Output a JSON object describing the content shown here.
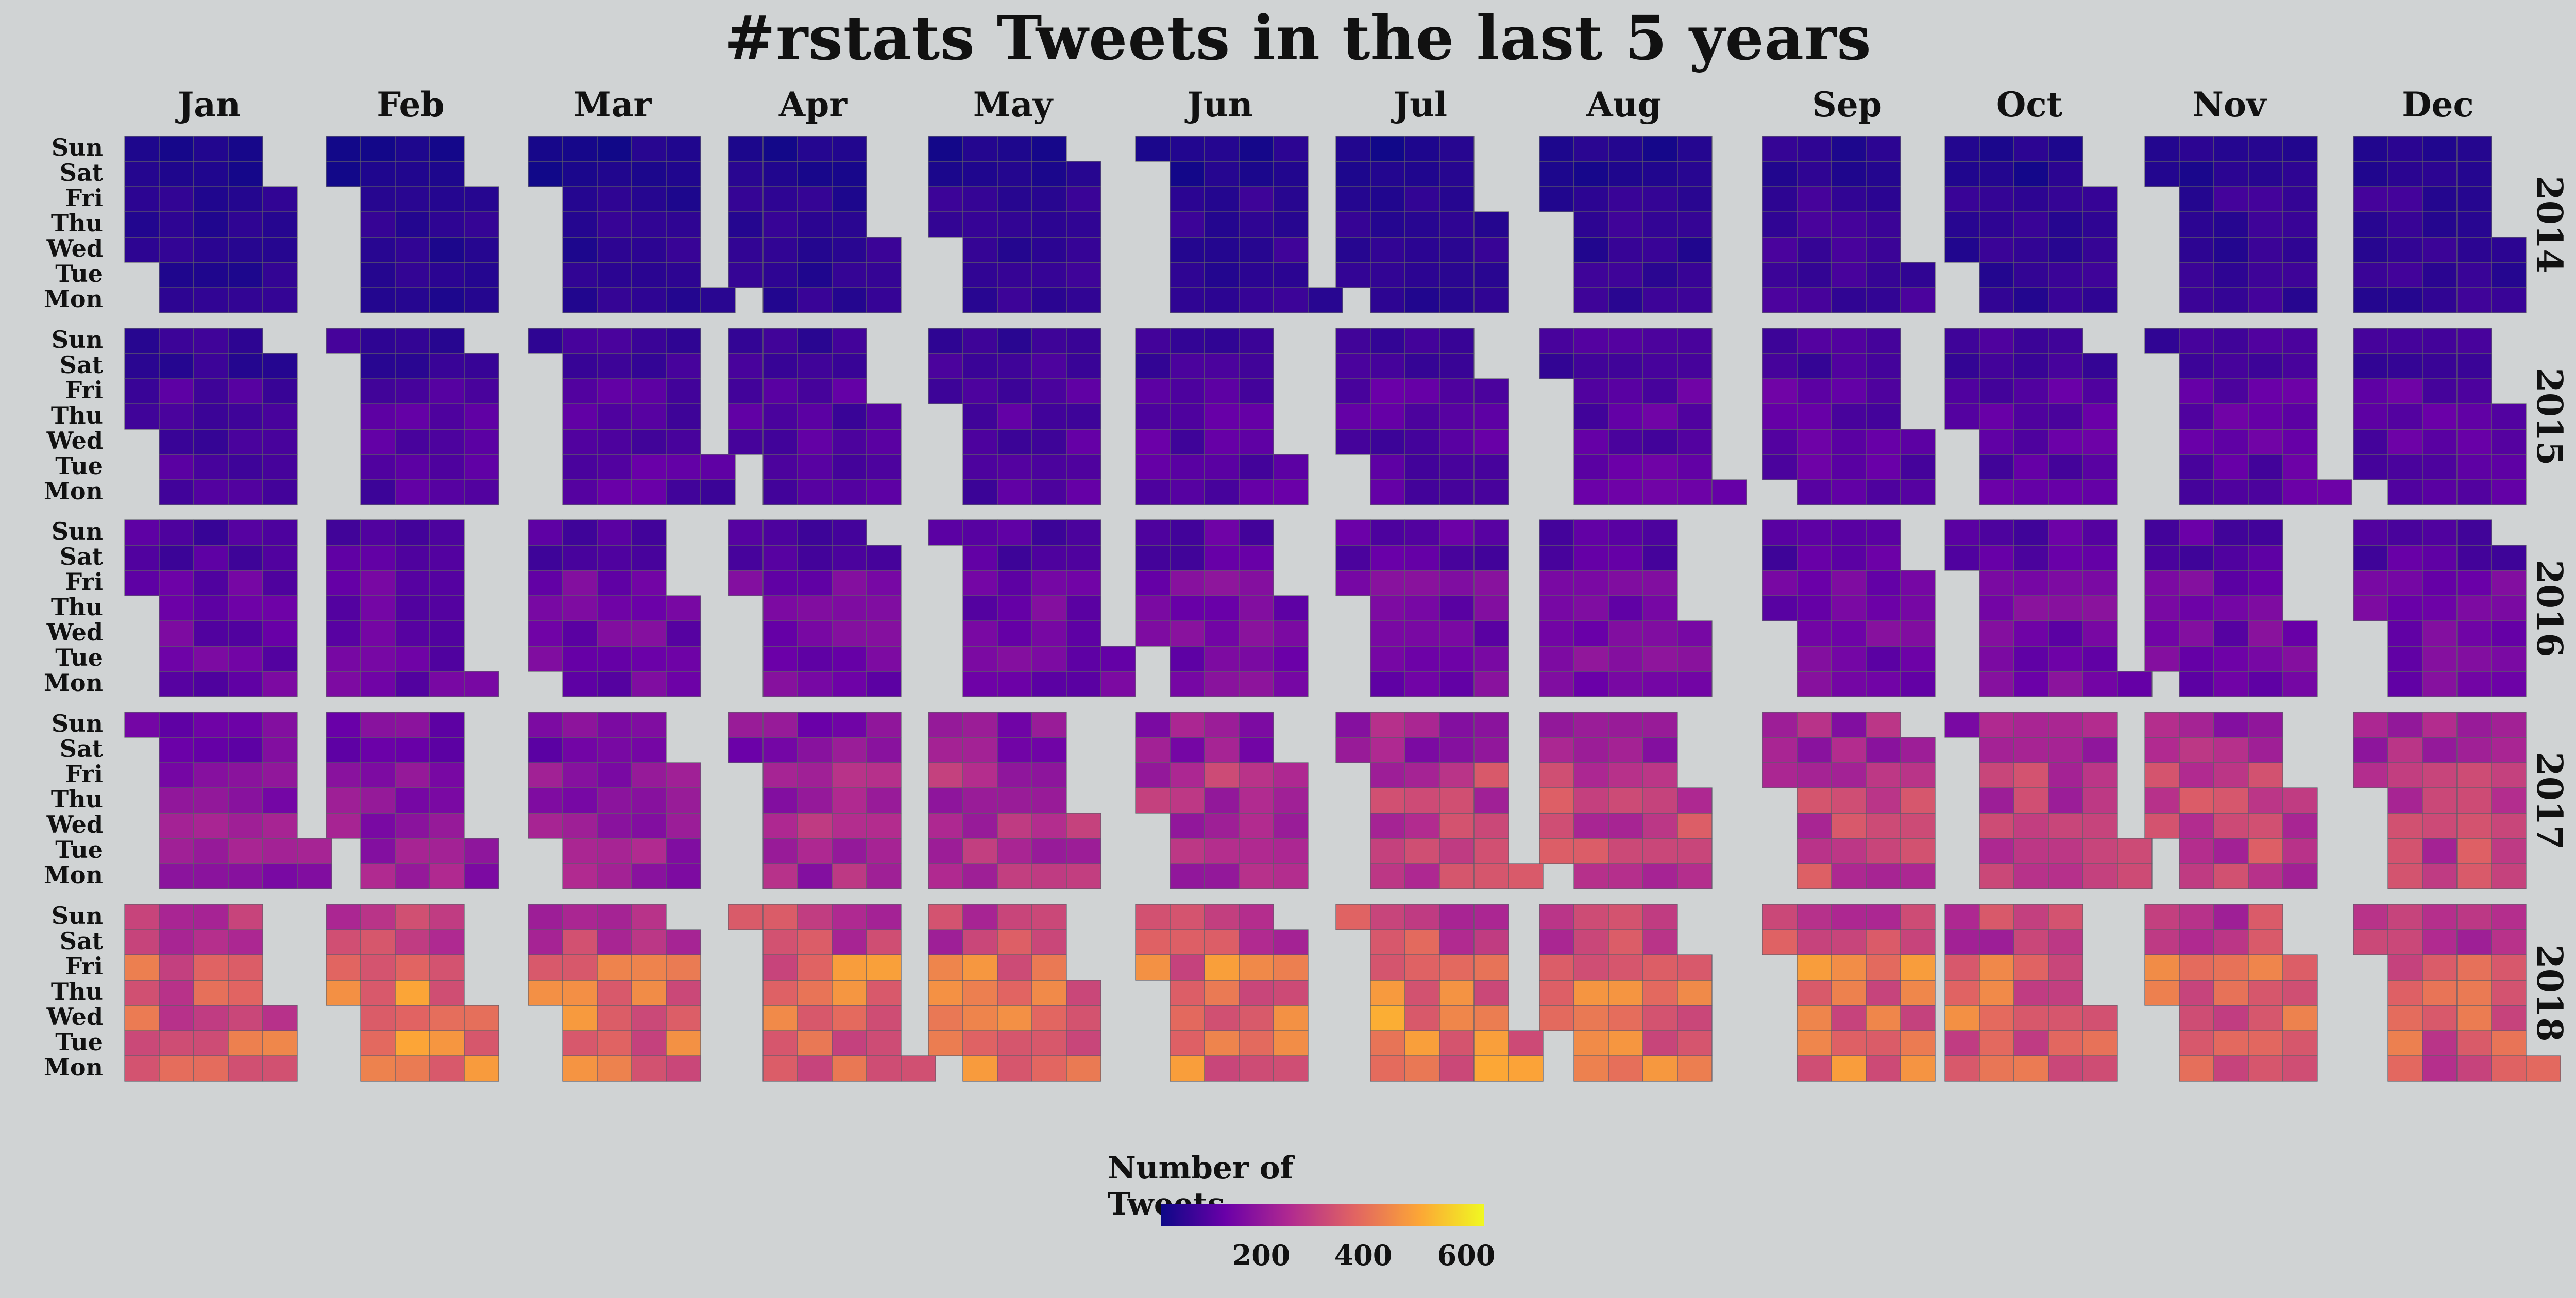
{
  "title": "#rstats Tweets in the last 5 years",
  "chart_data": {
    "type": "heatmap",
    "title": "#rstats Tweets in the last 5 years",
    "months": [
      "Jan",
      "Feb",
      "Mar",
      "Apr",
      "May",
      "Jun",
      "Jul",
      "Aug",
      "Sep",
      "Oct",
      "Nov",
      "Dec"
    ],
    "weekdays": [
      "Sun",
      "Sat",
      "Fri",
      "Thu",
      "Wed",
      "Tue",
      "Mon"
    ],
    "years": [
      "2014",
      "2015",
      "2016",
      "2017",
      "2018"
    ],
    "first_weekday_sun0": [
      3,
      4,
      5,
      0,
      1
    ],
    "leap_year": [
      false,
      false,
      true,
      false,
      false
    ],
    "level_by_year_month": [
      [
        85,
        85,
        90,
        90,
        95,
        95,
        90,
        95,
        110,
        95,
        100,
        100
      ],
      [
        130,
        135,
        140,
        135,
        140,
        145,
        140,
        150,
        150,
        145,
        150,
        155
      ],
      [
        170,
        175,
        180,
        180,
        180,
        190,
        185,
        195,
        185,
        190,
        185,
        180
      ],
      [
        230,
        240,
        245,
        270,
        290,
        300,
        320,
        330,
        330,
        320,
        335,
        330
      ],
      [
        390,
        440,
        420,
        430,
        420,
        430,
        450,
        420,
        430,
        410,
        420,
        380
      ]
    ],
    "value_range": [
      50,
      650
    ],
    "legend": {
      "title": "Number of Tweets",
      "ticks": [
        "200",
        "400",
        "600"
      ],
      "tick_values": [
        200,
        400,
        600
      ],
      "colors": [
        "#0d0887",
        "#6a00a8",
        "#b12a90",
        "#e16462",
        "#fca636",
        "#f0f921"
      ]
    }
  }
}
